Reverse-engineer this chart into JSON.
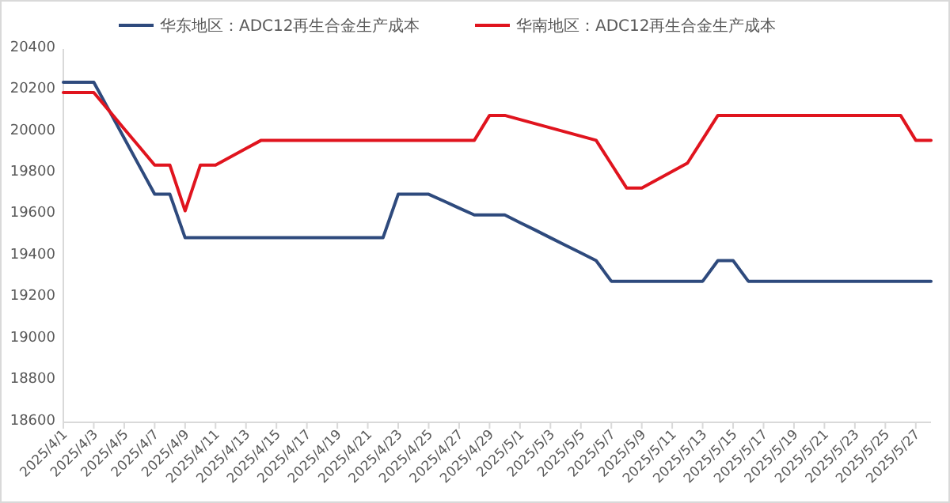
{
  "chart_data": {
    "type": "line",
    "categories": [
      "2025/4/1",
      null,
      "2025/4/3",
      null,
      "2025/4/5",
      null,
      "2025/4/7",
      null,
      "2025/4/9",
      null,
      "2025/4/11",
      null,
      "2025/4/13",
      null,
      "2025/4/15",
      null,
      "2025/4/17",
      null,
      "2025/4/19",
      null,
      "2025/4/21",
      null,
      "2025/4/23",
      null,
      "2025/4/25",
      null,
      "2025/4/27",
      null,
      "2025/4/29",
      null,
      "2025/5/1",
      null,
      "2025/5/3",
      null,
      "2025/5/5",
      null,
      "2025/5/7",
      null,
      "2025/5/9",
      null,
      "2025/5/11",
      null,
      "2025/5/13",
      null,
      "2025/5/15",
      null,
      "2025/5/17",
      null,
      "2025/5/19",
      null,
      "2025/5/21",
      null,
      "2025/5/23",
      null,
      "2025/5/25",
      null,
      "2025/5/27",
      null
    ],
    "series": [
      {
        "name": "华东地区：ADC12再生合金生产成本",
        "color": "#2e4a7d",
        "values": [
          20240,
          20240,
          20240,
          20105,
          19970,
          19835,
          19700,
          19700,
          19490,
          19490,
          19490,
          19490,
          19490,
          19490,
          19490,
          19490,
          19490,
          19490,
          19490,
          19490,
          19490,
          19490,
          19700,
          19700,
          19700,
          19667,
          19633,
          19600,
          19600,
          19600,
          19563,
          19527,
          19490,
          19453,
          19417,
          19380,
          19280,
          19280,
          19280,
          19280,
          19280,
          19280,
          19280,
          19380,
          19380,
          19280,
          19280,
          19280,
          19280,
          19280,
          19280,
          19280,
          19280,
          19280,
          19280,
          19280,
          19280,
          19280
        ]
      },
      {
        "name": "华南地区：ADC12再生合金生产成本",
        "color": "#e0141e",
        "values": [
          20190,
          20190,
          20190,
          20103,
          20015,
          19928,
          19840,
          19840,
          19620,
          19840,
          19840,
          19880,
          19920,
          19960,
          19960,
          19960,
          19960,
          19960,
          19960,
          19960,
          19960,
          19960,
          19960,
          19960,
          19960,
          19960,
          19960,
          19960,
          20080,
          20080,
          20060,
          20040,
          20020,
          20000,
          19980,
          19960,
          19845,
          19730,
          19730,
          19770,
          19810,
          19850,
          19965,
          20080,
          20080,
          20080,
          20080,
          20080,
          20080,
          20080,
          20080,
          20080,
          20080,
          20080,
          20080,
          20080,
          19960,
          19960
        ]
      }
    ],
    "ylim": [
      18600,
      20400
    ],
    "yticks": [
      18600,
      18800,
      19000,
      19200,
      19400,
      19600,
      19800,
      20000,
      20200,
      20400
    ],
    "legend": "top",
    "marker": "none",
    "line_style": "solid"
  }
}
